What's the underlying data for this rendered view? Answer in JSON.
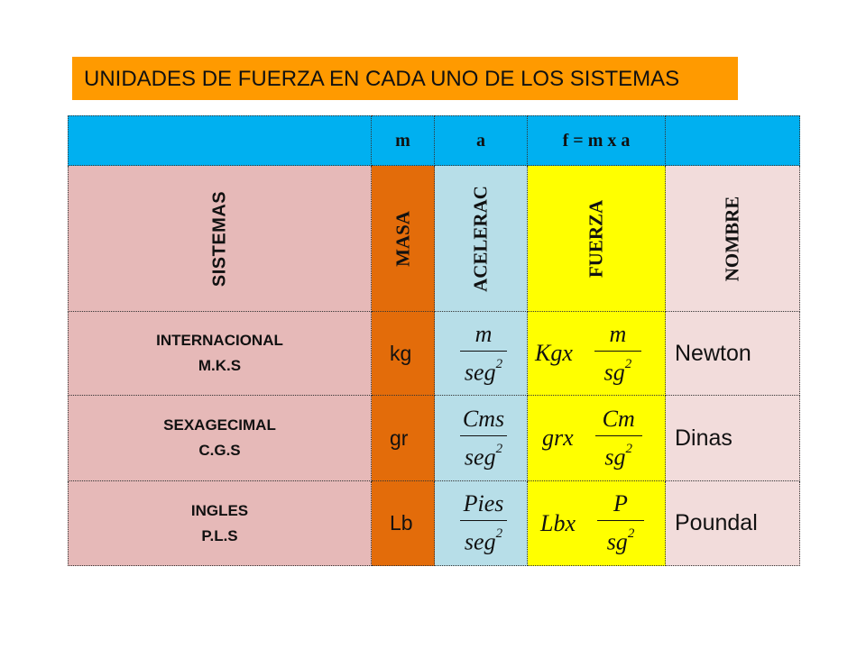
{
  "title": "UNIDADES DE FUERZA EN CADA UNO DE LOS SISTEMAS",
  "header": {
    "m": "m",
    "a": "a",
    "f": "f = m x a"
  },
  "vertical_headers": {
    "sistemas": "SISTEMAS",
    "masa": "MASA",
    "aceleracion": "ACELERAC",
    "fuerza": "FUERZA",
    "nombre": "NOMBRE"
  },
  "rows": [
    {
      "system": "INTERNACIONAL",
      "abbr": "M.K.S",
      "mass_unit": "kg",
      "accel_num": "m",
      "accel_den": "seg",
      "accel_exp": "2",
      "force_prefix": "Kgx",
      "force_num": "m",
      "force_den": "sg",
      "force_exp": "2",
      "name": "Newton"
    },
    {
      "system": "SEXAGECIMAL",
      "abbr": "C.G.S",
      "mass_unit": "gr",
      "accel_num": "Cms",
      "accel_den": "seg",
      "accel_exp": "2",
      "force_prefix": "grx",
      "force_num": "Cm",
      "force_den": "sg",
      "force_exp": "2",
      "name": "Dinas"
    },
    {
      "system": "INGLES",
      "abbr": "P.L.S",
      "mass_unit": "Lb",
      "accel_num": "Pies",
      "accel_den": "seg",
      "accel_exp": "2",
      "force_prefix": "Lbx",
      "force_num": "P",
      "force_den": "sg",
      "force_exp": "2",
      "name": "Poundal"
    }
  ],
  "colors": {
    "title_bg": "#ff9a00",
    "header_bg": "#00b0f0",
    "systems_bg": "#e6b9b8",
    "mass_bg": "#e36c0a",
    "accel_bg": "#b7dee8",
    "force_bg": "#ffff00",
    "name_bg": "#f2dcdb"
  }
}
